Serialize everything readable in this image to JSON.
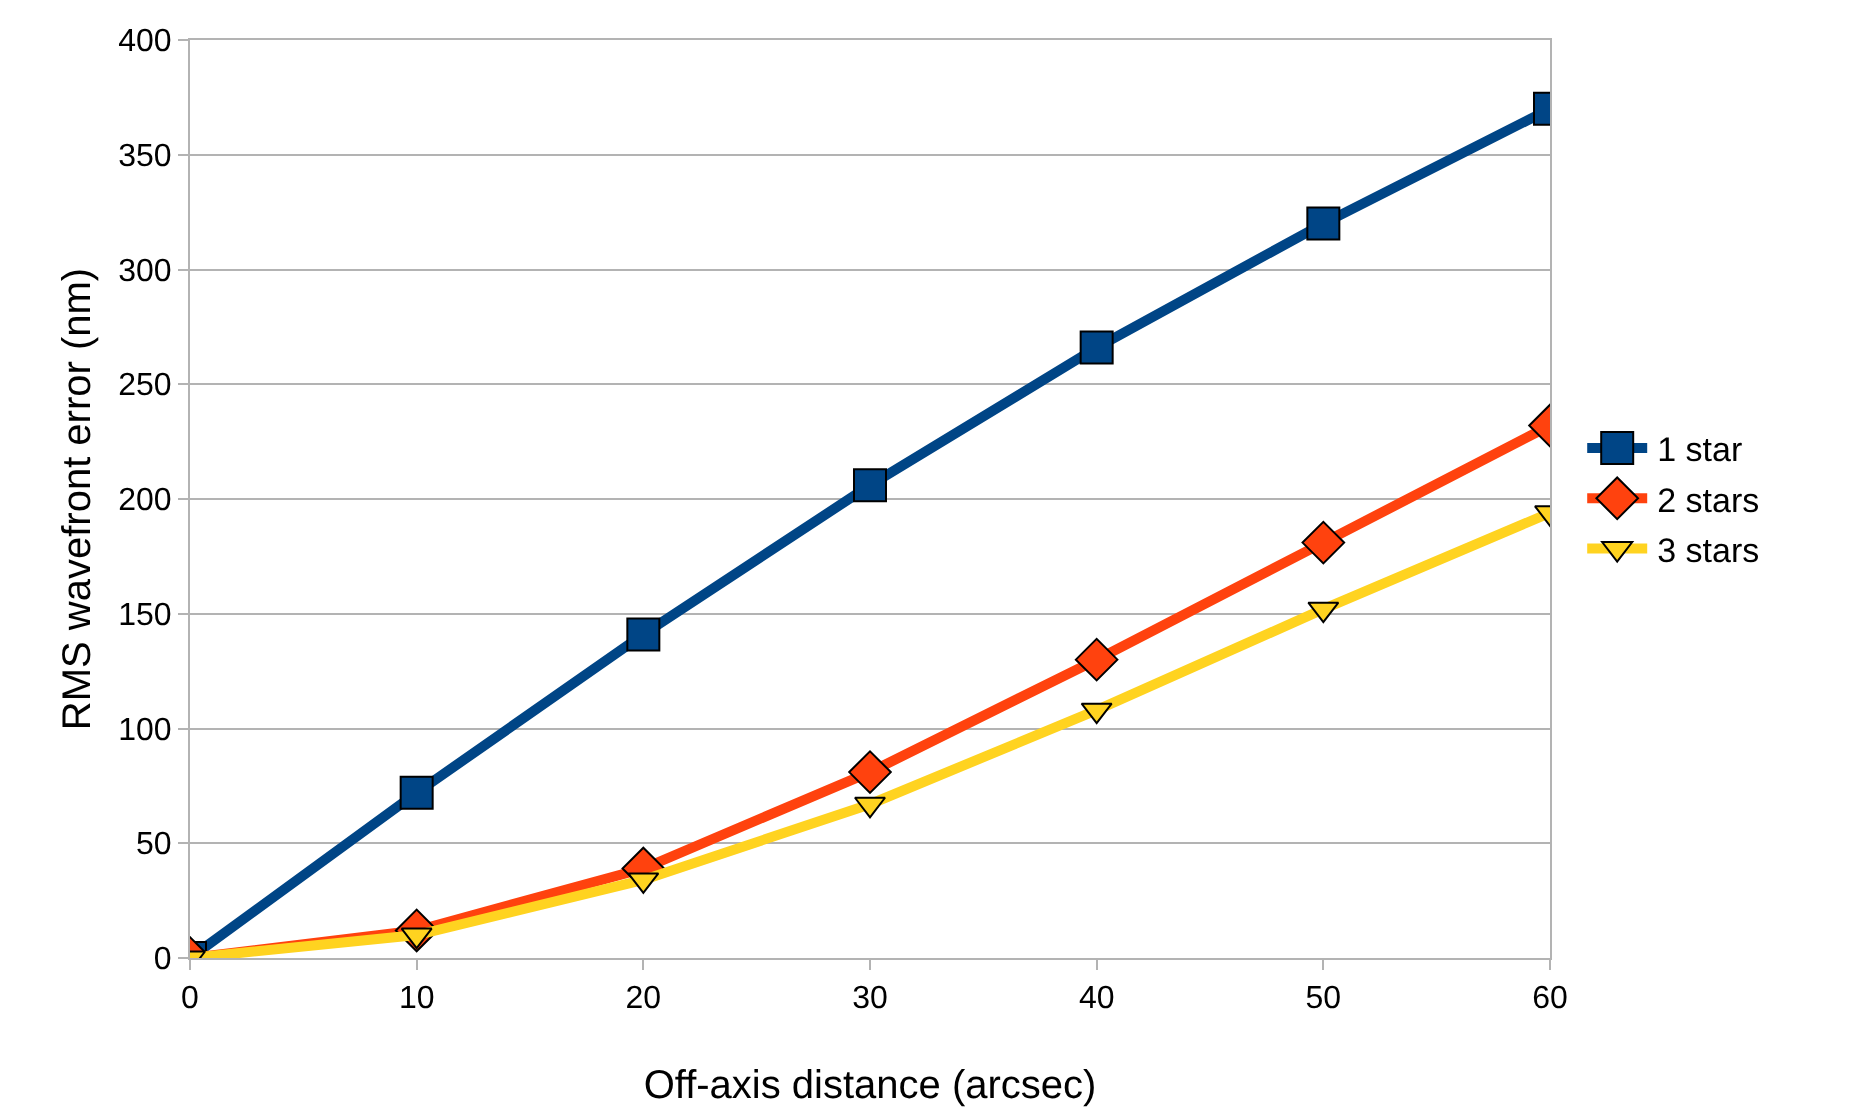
{
  "chart_data": {
    "type": "line",
    "xlabel": "Off-axis distance (arcsec)",
    "ylabel": "RMS wavefront error (nm)",
    "x": [
      0,
      10,
      20,
      30,
      40,
      50,
      60
    ],
    "series": [
      {
        "name": "1 star",
        "color": "#004586",
        "marker": "square",
        "values": [
          0,
          72,
          141,
          206,
          266,
          320,
          370
        ]
      },
      {
        "name": "2 stars",
        "color": "#ff420e",
        "marker": "diamond",
        "values": [
          0,
          12,
          39,
          81,
          130,
          181,
          232
        ]
      },
      {
        "name": "3 stars",
        "color": "#ffd320",
        "marker": "triangle",
        "values": [
          0,
          10,
          34,
          67,
          108,
          152,
          194
        ]
      }
    ],
    "xlim": [
      0,
      60
    ],
    "xticks": [
      0,
      10,
      20,
      30,
      40,
      50,
      60
    ],
    "ylim": [
      0,
      400
    ],
    "yticks": [
      0,
      50,
      100,
      150,
      200,
      250,
      300,
      350,
      400
    ],
    "grid": "y",
    "legend": "right",
    "line_style": "solid"
  }
}
